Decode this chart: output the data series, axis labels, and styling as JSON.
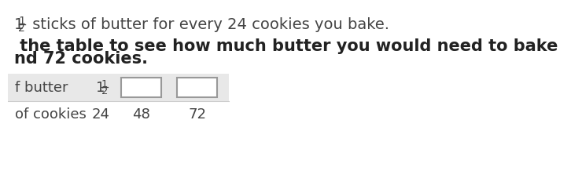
{
  "line1_whole": "1",
  "line1_frac_num": "1",
  "line1_frac_den": "2",
  "line1_suffix": " sticks of butter for every 24 cookies you bake.",
  "line2": " the table to see how much butter you would need to bake ",
  "line3": "nd 72 cookies.",
  "row1_label": "f butter",
  "row1_whole": "1",
  "row1_frac_num": "1",
  "row1_frac_den": "2",
  "row2_label": "of cookies",
  "row2_values": [
    "24",
    "48",
    "72"
  ],
  "bg_color": "#ffffff",
  "table_bg": "#e8e8e8",
  "text_color": "#444444",
  "text_color_bold": "#222222",
  "box_color": "#ffffff",
  "box_border": "#999999",
  "font_size_line1": 14,
  "font_size_body": 15,
  "font_size_table": 13
}
